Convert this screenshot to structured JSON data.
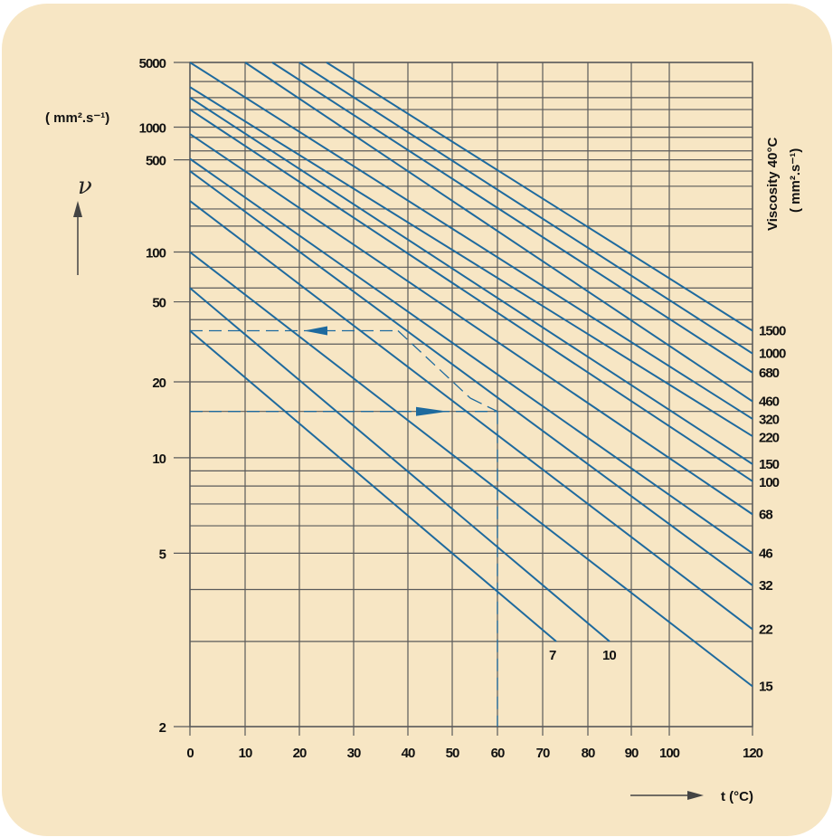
{
  "chart_data": {
    "type": "line",
    "y_scale": "log-log (Walther viscosity-temperature)",
    "x_scale": "linear",
    "xlim": [
      0,
      120
    ],
    "ylim": [
      2,
      5000
    ],
    "xlabel": "t (°C)",
    "ylabel_symbol": "ν",
    "y_unit": "( mm².s⁻¹)",
    "right_axis_title": "Viscosity 40°C",
    "right_axis_unit": "( mm².s⁻¹)",
    "x_ticks": [
      0,
      10,
      20,
      30,
      40,
      50,
      60,
      70,
      80,
      90,
      100,
      120
    ],
    "x_tick_labels": [
      "0",
      "10",
      "20",
      "30",
      "40",
      "50",
      "60",
      "70",
      "80",
      "90",
      "100",
      "120"
    ],
    "y_ticks": [
      5000,
      1000,
      500,
      100,
      50,
      20,
      10,
      5,
      2
    ],
    "y_tick_labels": [
      "5000",
      "1000",
      "500",
      "100",
      "50",
      "20",
      "10",
      "5",
      "2"
    ],
    "y_gridlines": [
      5000,
      3000,
      2000,
      1500,
      1000,
      800,
      600,
      500,
      400,
      300,
      200,
      150,
      100,
      80,
      60,
      50,
      40,
      30,
      20,
      15,
      10,
      9,
      8,
      7,
      6,
      5,
      4,
      3,
      2
    ],
    "grid": true,
    "series": [
      {
        "name": "7",
        "label_position": "bottom",
        "points": [
          {
            "x": 0,
            "y": 35
          },
          {
            "x": 73,
            "y": 3
          }
        ]
      },
      {
        "name": "10",
        "label_position": "bottom",
        "points": [
          {
            "x": 0,
            "y": 60
          },
          {
            "x": 85,
            "y": 3
          }
        ]
      },
      {
        "name": "15",
        "label_position": "right",
        "points": [
          {
            "x": 0,
            "y": 100
          },
          {
            "x": 120,
            "y": 2.4
          }
        ]
      },
      {
        "name": "22",
        "label_position": "right",
        "points": [
          {
            "x": 0,
            "y": 230
          },
          {
            "x": 120,
            "y": 3.2
          }
        ]
      },
      {
        "name": "32",
        "label_position": "right",
        "points": [
          {
            "x": 0,
            "y": 400
          },
          {
            "x": 120,
            "y": 4.1
          }
        ]
      },
      {
        "name": "46",
        "label_position": "right",
        "points": [
          {
            "x": 0,
            "y": 510
          },
          {
            "x": 120,
            "y": 5
          }
        ]
      },
      {
        "name": "68",
        "label_position": "right",
        "points": [
          {
            "x": 0,
            "y": 860
          },
          {
            "x": 120,
            "y": 6.5
          }
        ]
      },
      {
        "name": "100",
        "label_position": "right",
        "points": [
          {
            "x": 0,
            "y": 1500
          },
          {
            "x": 120,
            "y": 8.3
          }
        ]
      },
      {
        "name": "150",
        "label_position": "right",
        "points": [
          {
            "x": 0,
            "y": 2000
          },
          {
            "x": 120,
            "y": 9.5
          }
        ]
      },
      {
        "name": "220",
        "label_position": "right",
        "points": [
          {
            "x": 0,
            "y": 2600
          },
          {
            "x": 120,
            "y": 12
          }
        ]
      },
      {
        "name": "320",
        "label_position": "right",
        "points": [
          {
            "x": 0,
            "y": 5000
          },
          {
            "x": 120,
            "y": 14
          }
        ]
      },
      {
        "name": "460",
        "label_position": "right",
        "points": [
          {
            "x": 10,
            "y": 5000
          },
          {
            "x": 120,
            "y": 16.5
          }
        ]
      },
      {
        "name": "680",
        "label_position": "right",
        "points": [
          {
            "x": 15,
            "y": 5000
          },
          {
            "x": 120,
            "y": 22
          }
        ]
      },
      {
        "name": "1000",
        "label_position": "right",
        "points": [
          {
            "x": 20,
            "y": 5000
          },
          {
            "x": 120,
            "y": 27
          }
        ]
      },
      {
        "name": "1500",
        "label_position": "right",
        "points": [
          {
            "x": 25,
            "y": 5000
          },
          {
            "x": 120,
            "y": 35
          }
        ]
      }
    ],
    "right_labels": [
      "1500",
      "1000",
      "680",
      "460",
      "320",
      "220",
      "150",
      "100",
      "68",
      "46",
      "32",
      "22",
      "15"
    ],
    "annotation": {
      "description": "dashed example path: oil at 60°C, 15 mm²/s reads ~35 mm²/s",
      "left_arrow_level": 35,
      "right_arrow_level": 15,
      "vertical_temperature": 60
    },
    "colors": {
      "background": "#f7e6c4",
      "line": "#1e6a9e",
      "grid": "#555555",
      "text": "#111111"
    }
  }
}
